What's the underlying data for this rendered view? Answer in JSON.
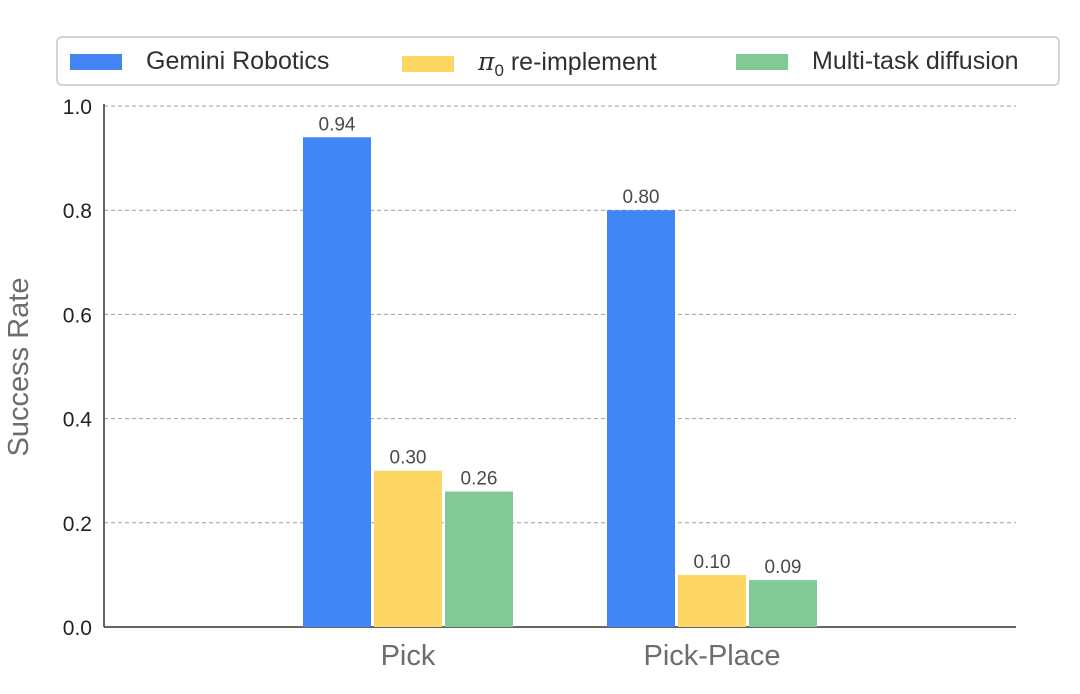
{
  "chart_data": {
    "type": "bar",
    "categories": [
      "Pick",
      "Pick-Place"
    ],
    "series": [
      {
        "name": "Gemini Robotics",
        "values": [
          0.94,
          0.8
        ],
        "labels": [
          "0.94",
          "0.80"
        ],
        "color": "#4285f4"
      },
      {
        "name": "π0 re-implement",
        "values": [
          0.3,
          0.1
        ],
        "labels": [
          "0.30",
          "0.10"
        ],
        "color": "#fdd663"
      },
      {
        "name": "Multi-task diffusion",
        "values": [
          0.26,
          0.09
        ],
        "labels": [
          "0.26",
          "0.09"
        ],
        "color": "#81c995"
      }
    ],
    "ylabel": "Success Rate",
    "xlabel": "",
    "ylim": [
      0,
      1.0
    ],
    "yticks": [
      "0.0",
      "0.2",
      "0.4",
      "0.6",
      "0.8",
      "1.0"
    ],
    "grid": true,
    "legend_position": "top"
  },
  "legend": {
    "gemini": "Gemini Robotics",
    "pi_symbol": "π",
    "pi_sub": "0",
    "pi_rest": " re-implement",
    "diffusion": "Multi-task diffusion"
  }
}
